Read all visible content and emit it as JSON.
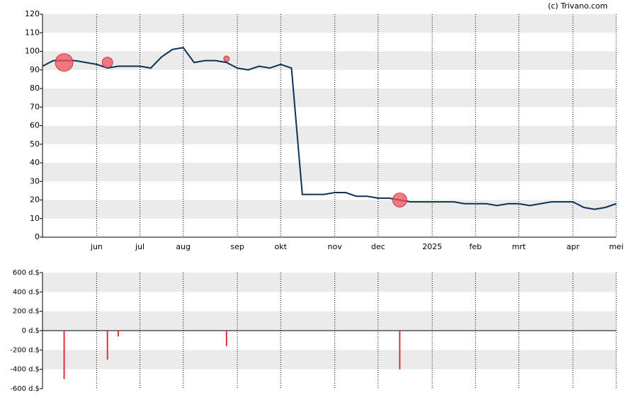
{
  "chart_data": [
    {
      "type": "line",
      "source": "(c) Trivano.com",
      "categories": [
        null,
        null,
        null,
        null,
        null,
        "jun",
        null,
        null,
        null,
        "jul",
        null,
        null,
        null,
        "aug",
        null,
        null,
        null,
        null,
        "sep",
        null,
        null,
        null,
        "okt",
        null,
        null,
        null,
        null,
        "nov",
        null,
        null,
        null,
        "dec",
        null,
        null,
        null,
        null,
        "2025",
        null,
        null,
        null,
        "feb",
        null,
        null,
        null,
        "mrt",
        null,
        null,
        null,
        null,
        "apr",
        null,
        null,
        null,
        "mei"
      ],
      "series": [
        {
          "type": "line",
          "color": "#0e3256",
          "values": [
            92,
            95,
            95,
            95,
            94,
            93,
            91,
            92,
            92,
            92,
            91,
            97,
            101,
            102,
            94,
            95,
            95,
            94,
            91,
            90,
            92,
            91,
            93,
            91,
            23,
            23,
            23,
            24,
            24,
            22,
            22,
            21,
            21,
            20,
            19,
            19,
            19,
            19,
            19,
            18,
            18,
            18,
            17,
            18,
            18,
            17,
            18,
            19,
            19,
            19,
            16,
            15,
            16,
            18
          ]
        },
        {
          "type": "bubble",
          "color": "#f0505c",
          "values": [
            null,
            null,
            94,
            null,
            null,
            null,
            94,
            null,
            null,
            null,
            null,
            null,
            null,
            null,
            null,
            null,
            null,
            96,
            null,
            null,
            null,
            null,
            null,
            null,
            null,
            null,
            null,
            null,
            null,
            null,
            null,
            null,
            null,
            20,
            null,
            null,
            null,
            null,
            null,
            null,
            null,
            null,
            null,
            null,
            null,
            null,
            null,
            null,
            null,
            null,
            null,
            null,
            null,
            null
          ],
          "sizes": [
            null,
            null,
            500,
            null,
            null,
            null,
            300,
            null,
            null,
            null,
            null,
            null,
            null,
            null,
            null,
            null,
            null,
            160,
            null,
            null,
            null,
            null,
            null,
            null,
            null,
            null,
            null,
            null,
            null,
            null,
            null,
            null,
            null,
            400,
            null,
            null,
            null,
            null,
            null,
            null,
            null,
            null,
            null,
            null,
            null,
            null,
            null,
            null,
            null,
            null,
            null,
            null,
            null,
            null
          ]
        }
      ],
      "ylim": [
        0,
        120
      ],
      "yticks": [
        0,
        10,
        20,
        30,
        40,
        50,
        60,
        70,
        80,
        90,
        100,
        110,
        120
      ],
      "grid": true
    },
    {
      "type": "bar",
      "color": "#e0303a",
      "values": [
        null,
        null,
        -500,
        null,
        null,
        null,
        -300,
        -60,
        null,
        null,
        null,
        null,
        null,
        null,
        null,
        null,
        null,
        -160,
        null,
        null,
        null,
        null,
        null,
        null,
        null,
        null,
        null,
        null,
        null,
        null,
        null,
        null,
        null,
        -400,
        null,
        null,
        null,
        null,
        null,
        null,
        null,
        null,
        null,
        null,
        null,
        null,
        null,
        null,
        null,
        null,
        null,
        null,
        null,
        null
      ],
      "ylim": [
        -600,
        600
      ],
      "yticks": [
        {
          "value": -600,
          "label": "-600 d.$"
        },
        {
          "value": -400,
          "label": "-400 d.$"
        },
        {
          "value": -200,
          "label": "-200 d.$"
        },
        {
          "value": 0,
          "label": "0 d.$"
        },
        {
          "value": 200,
          "label": "200 d.$"
        },
        {
          "value": 400,
          "label": "400 d.$"
        },
        {
          "value": 600,
          "label": "600 d.$"
        }
      ],
      "grid": true
    }
  ]
}
